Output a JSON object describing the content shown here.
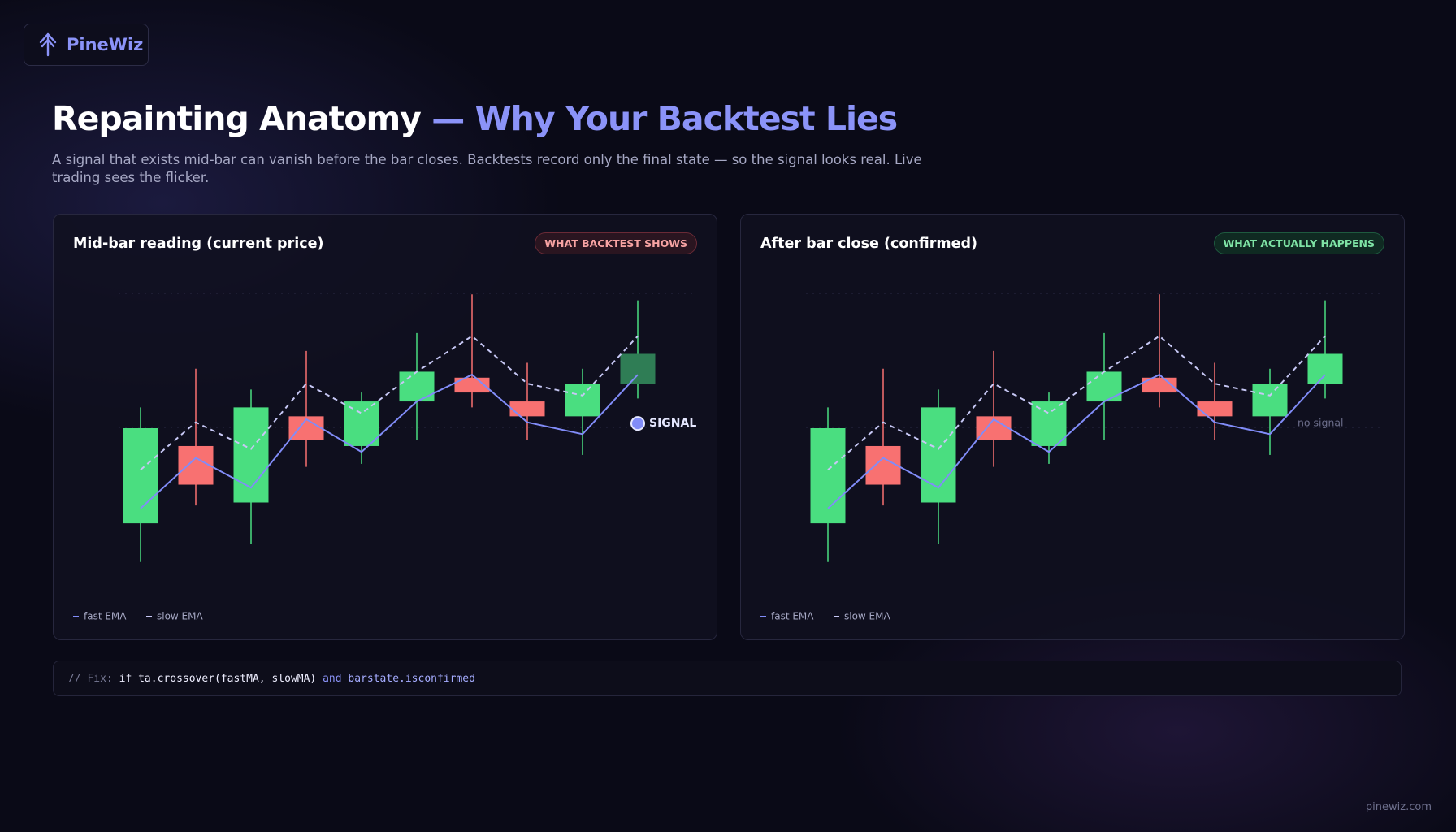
{
  "brand": "PineWiz",
  "header": {
    "title": "Repainting Anatomy",
    "title_accent": "— Why Your Backtest Lies",
    "subtitle": "A signal that exists mid-bar can vanish before the bar closes. Backtests record only the final state — so the signal looks real. Live trading sees the flicker."
  },
  "chart_data": [
    {
      "type": "candlestick",
      "title": "Mid-bar reading (current price)",
      "badge": "WHAT BACKTEST SHOWS",
      "ylim": [
        0,
        100
      ],
      "up_color": "#4ade80",
      "down_color": "#f87171",
      "last_color": "#2f7d55",
      "open": [
        18,
        44,
        25,
        54,
        44,
        59,
        67,
        59,
        54,
        65
      ],
      "high": [
        57,
        70,
        63,
        76,
        62,
        82,
        95,
        72,
        70,
        93
      ],
      "low": [
        5,
        24,
        11,
        37,
        38,
        46,
        57,
        46,
        41,
        60
      ],
      "close": [
        50,
        31,
        57,
        46,
        59,
        69,
        62,
        54,
        65,
        75
      ],
      "series": [
        {
          "name": "fast EMA",
          "color": "#818cf8",
          "values": [
            23,
            40,
            30,
            53,
            42,
            59,
            68,
            52,
            48,
            68
          ]
        },
        {
          "name": "slow EMA",
          "color": "#c7c8f5",
          "dashed": true,
          "values": [
            36,
            52,
            43,
            65,
            55,
            69,
            81,
            65,
            61,
            81
          ]
        }
      ],
      "annotation": {
        "text": "SIGNAL",
        "value": 51.6,
        "marker": true
      }
    },
    {
      "type": "candlestick",
      "title": "After bar close (confirmed)",
      "badge": "WHAT ACTUALLY HAPPENS",
      "ylim": [
        0,
        100
      ],
      "up_color": "#4ade80",
      "down_color": "#f87171",
      "open": [
        18,
        44,
        25,
        54,
        44,
        59,
        67,
        59,
        54,
        65
      ],
      "high": [
        57,
        70,
        63,
        76,
        62,
        82,
        95,
        72,
        70,
        93
      ],
      "low": [
        5,
        24,
        11,
        37,
        38,
        46,
        57,
        46,
        41,
        60
      ],
      "close": [
        50,
        31,
        57,
        46,
        59,
        69,
        62,
        54,
        65,
        75
      ],
      "series": [
        {
          "name": "fast EMA",
          "color": "#818cf8",
          "values": [
            23,
            40,
            30,
            53,
            42,
            59,
            68,
            52,
            48,
            68
          ]
        },
        {
          "name": "slow EMA",
          "color": "#c7c8f5",
          "dashed": true,
          "values": [
            36,
            52,
            43,
            65,
            55,
            69,
            81,
            65,
            61,
            81
          ]
        }
      ],
      "annotation": {
        "text": "no signal",
        "value": 51.6,
        "marker": false
      }
    }
  ],
  "code": {
    "comment": "// Fix:",
    "expr": "if ta.crossover(fastMA, slowMA)",
    "keyword": "and",
    "tail": "barstate.isconfirmed"
  },
  "footer": "pinewiz.com"
}
